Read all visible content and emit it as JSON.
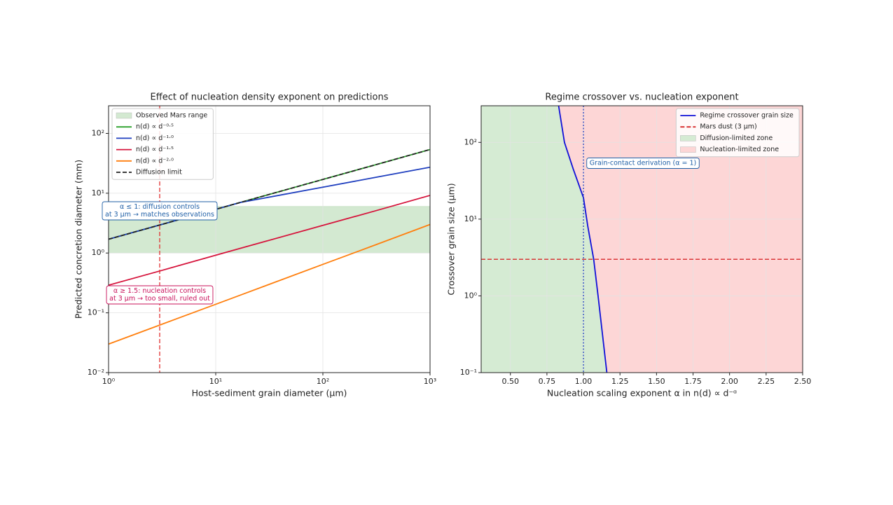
{
  "chart_data": [
    {
      "type": "line",
      "title": "Effect of nucleation density exponent on predictions",
      "xlabel": "Host-sediment grain diameter (μm)",
      "ylabel": "Predicted concretion diameter (mm)",
      "xscale": "log",
      "yscale": "log",
      "xlim": [
        1,
        1000
      ],
      "ylim": [
        0.01,
        290
      ],
      "xticks": [
        {
          "value": 1,
          "label": "10⁰"
        },
        {
          "value": 10,
          "label": "10¹"
        },
        {
          "value": 100,
          "label": "10²"
        },
        {
          "value": 1000,
          "label": "10³"
        }
      ],
      "yticks": [
        {
          "value": 0.01,
          "label": "10⁻²"
        },
        {
          "value": 0.1,
          "label": "10⁻¹"
        },
        {
          "value": 1,
          "label": "10⁰"
        },
        {
          "value": 10,
          "label": "10¹"
        },
        {
          "value": 100,
          "label": "10²"
        }
      ],
      "grid": true,
      "legend": "upper left",
      "bands": [
        {
          "name": "Observed Mars range",
          "range": [
            1,
            6
          ],
          "color": "#d3e9d1"
        }
      ],
      "x": [
        1,
        3,
        10,
        17,
        30,
        100,
        300,
        1000
      ],
      "series": [
        {
          "name": "n(d) ∝ d⁻⁰·⁵",
          "color": "#2ca02c",
          "values": [
            1.7,
            2.94,
            5.38,
            7.01,
            9.31,
            17,
            29.4,
            53.8
          ]
        },
        {
          "name": "n(d) ∝ d⁻¹·⁰",
          "color": "#1f3fbf",
          "values": [
            1.7,
            2.94,
            5.38,
            7.01,
            8.45,
            12.6,
            18.2,
            27.2
          ]
        },
        {
          "name": "n(d) ∝ d⁻¹·⁵",
          "color": "#d6143c",
          "values": [
            0.29,
            0.5,
            0.92,
            1.2,
            1.59,
            2.9,
            5.0,
            9.2
          ]
        },
        {
          "name": "n(d) ∝ d⁻²·⁰",
          "color": "#ff7f0e",
          "values": [
            0.03,
            0.0624,
            0.139,
            0.198,
            0.289,
            0.646,
            1.34,
            3.0
          ]
        },
        {
          "name": "Diffusion limit",
          "color": "#222222",
          "style": "dashed",
          "values": [
            1.7,
            2.94,
            5.38,
            7.01,
            9.31,
            17,
            29.4,
            53.8
          ]
        }
      ],
      "vlines": [
        {
          "x": 3,
          "color": "#e03030",
          "style": "dashed"
        }
      ],
      "annotations": [
        {
          "lines": [
            "α ≤ 1: diffusion controls",
            "at 3 μm → matches observations"
          ],
          "color": "#1f5fa6"
        },
        {
          "lines": [
            "α ≥ 1.5: nucleation controls",
            "at 3 μm → too small, ruled out"
          ],
          "color": "#c8105a"
        }
      ]
    },
    {
      "type": "line",
      "title": "Regime crossover vs. nucleation exponent",
      "xlabel": "Nucleation scaling exponent α in n(d) ∝ d⁻ᵅ",
      "ylabel": "Crossover grain size (μm)",
      "xscale": "linear",
      "yscale": "log",
      "xlim": [
        0.3,
        2.5
      ],
      "ylim": [
        0.1,
        300
      ],
      "xticks": [
        {
          "value": 0.5,
          "label": "0.50"
        },
        {
          "value": 0.75,
          "label": "0.75"
        },
        {
          "value": 1,
          "label": "1.00"
        },
        {
          "value": 1.25,
          "label": "1.25"
        },
        {
          "value": 1.5,
          "label": "1.50"
        },
        {
          "value": 1.75,
          "label": "1.75"
        },
        {
          "value": 2,
          "label": "2.00"
        },
        {
          "value": 2.25,
          "label": "2.25"
        },
        {
          "value": 2.5,
          "label": "2.50"
        }
      ],
      "yticks": [
        {
          "value": 0.1,
          "label": "10⁻¹"
        },
        {
          "value": 1,
          "label": "10⁰"
        },
        {
          "value": 10,
          "label": "10¹"
        },
        {
          "value": 100,
          "label": "10²"
        }
      ],
      "grid": true,
      "legend": "upper right",
      "x": [
        0.83,
        0.87,
        0.93,
        1.0,
        1.03,
        1.07,
        1.1,
        1.16
      ],
      "series": [
        {
          "name": "Regime crossover grain size",
          "color": "#1010d8",
          "values": [
            300,
            100,
            45,
            19,
            8,
            3,
            1,
            0.1
          ]
        }
      ],
      "hlines": [
        {
          "name": "Mars dust (3 μm)",
          "y": 3,
          "color": "#d62728",
          "style": "dashed"
        }
      ],
      "vlines": [
        {
          "x": 1,
          "color": "#1f3fbf",
          "style": "dotted"
        }
      ],
      "zones": [
        {
          "name": "Diffusion-limited zone",
          "color": "#d5ebd3"
        },
        {
          "name": "Nucleation-limited zone",
          "color": "#fdd6d6"
        }
      ],
      "annotations": [
        {
          "lines": [
            "Grain-contact derivation (α = 1)"
          ],
          "color": "#1f5fa6"
        }
      ]
    }
  ]
}
